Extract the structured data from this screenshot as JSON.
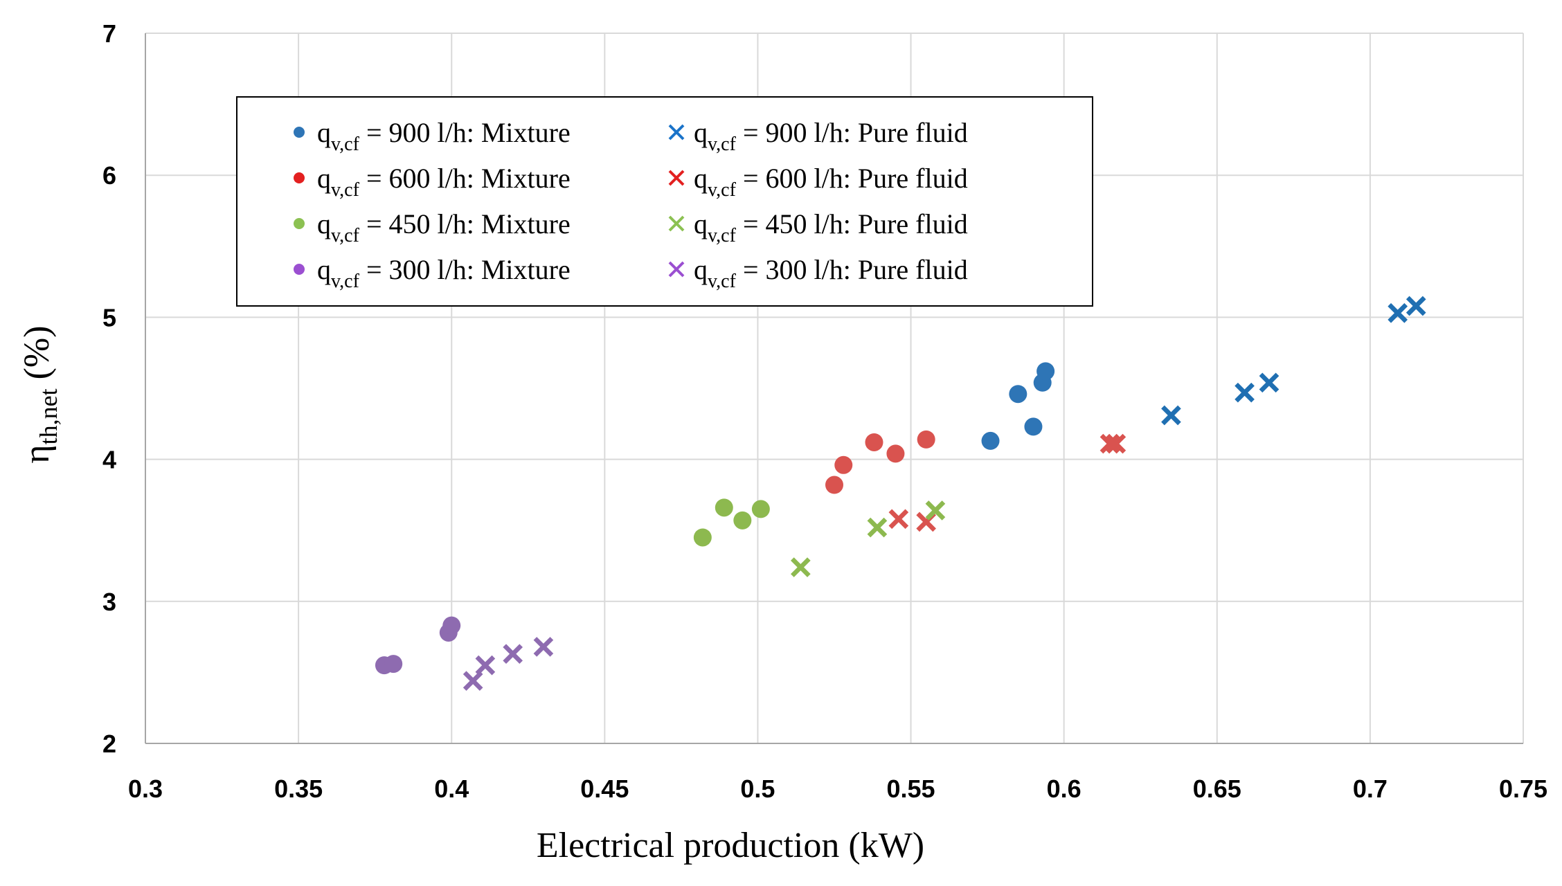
{
  "chart_data": {
    "type": "scatter",
    "title": "",
    "xlabel": "Electrical production (kW)",
    "ylabel": {
      "main": "η",
      "sub": "th,net",
      "unit": " (%)"
    },
    "xlim": [
      0.3,
      0.75
    ],
    "ylim": [
      2,
      7
    ],
    "xticks": [
      0.3,
      0.35,
      0.4,
      0.45,
      0.5,
      0.55,
      0.6,
      0.65,
      0.7,
      0.75
    ],
    "xtick_labels": [
      "0.3",
      "0.35",
      "0.4",
      "0.45",
      "0.5",
      "0.55",
      "0.6",
      "0.65",
      "0.7",
      "0.75"
    ],
    "yticks": [
      2,
      3,
      4,
      5,
      6,
      7
    ],
    "ytick_labels": [
      "2",
      "3",
      "4",
      "5",
      "6",
      "7"
    ],
    "grid": true,
    "legend_position": "top-left",
    "series": [
      {
        "id": "900-mixture",
        "q": "q",
        "q_sub": "v,cf",
        "rest": " = 900 l/h: Mixture",
        "marker": "circle",
        "color": "#2e75b6",
        "legend_color": "#2e75b6",
        "points": [
          [
            0.576,
            4.13
          ],
          [
            0.585,
            4.46
          ],
          [
            0.59,
            4.23
          ],
          [
            0.593,
            4.54
          ],
          [
            0.594,
            4.62
          ]
        ]
      },
      {
        "id": "600-mixture",
        "q": "q",
        "q_sub": "v,cf",
        "rest": " = 600 l/h: Mixture",
        "marker": "circle",
        "color": "#d9534f",
        "legend_color": "#e32020",
        "points": [
          [
            0.525,
            3.82
          ],
          [
            0.528,
            3.96
          ],
          [
            0.538,
            4.12
          ],
          [
            0.545,
            4.04
          ],
          [
            0.555,
            4.14
          ]
        ]
      },
      {
        "id": "450-mixture",
        "q": "q",
        "q_sub": "v,cf",
        "rest": " = 450 l/h: Mixture",
        "marker": "circle",
        "color": "#8db94f",
        "legend_color": "#8cc152",
        "points": [
          [
            0.482,
            3.45
          ],
          [
            0.489,
            3.66
          ],
          [
            0.495,
            3.57
          ],
          [
            0.501,
            3.65
          ]
        ]
      },
      {
        "id": "300-mixture",
        "q": "q",
        "q_sub": "v,cf",
        "rest": " = 300 l/h: Mixture",
        "marker": "circle",
        "color": "#8e6bb0",
        "legend_color": "#9b4fd1",
        "points": [
          [
            0.378,
            2.55
          ],
          [
            0.381,
            2.56
          ],
          [
            0.399,
            2.78
          ],
          [
            0.4,
            2.83
          ]
        ]
      },
      {
        "id": "900-pure",
        "q": "q",
        "q_sub": "v,cf",
        "rest": " = 900 l/h: Pure fluid",
        "marker": "x",
        "color": "#1f6fb2",
        "legend_color": "#1a73c9",
        "points": [
          [
            0.635,
            4.31
          ],
          [
            0.659,
            4.47
          ],
          [
            0.667,
            4.54
          ],
          [
            0.709,
            5.03
          ],
          [
            0.715,
            5.08
          ]
        ]
      },
      {
        "id": "600-pure",
        "q": "q",
        "q_sub": "v,cf",
        "rest": " = 600 l/h: Pure fluid",
        "marker": "x",
        "color": "#d9534f",
        "legend_color": "#e32020",
        "points": [
          [
            0.546,
            3.58
          ],
          [
            0.555,
            3.56
          ],
          [
            0.615,
            4.11
          ],
          [
            0.617,
            4.11
          ]
        ]
      },
      {
        "id": "450-pure",
        "q": "q",
        "q_sub": "v,cf",
        "rest": " = 450 l/h: Pure fluid",
        "marker": "x",
        "color": "#8db94f",
        "legend_color": "#8cc152",
        "points": [
          [
            0.514,
            3.24
          ],
          [
            0.539,
            3.52
          ],
          [
            0.558,
            3.64
          ]
        ]
      },
      {
        "id": "300-pure",
        "q": "q",
        "q_sub": "v,cf",
        "rest": " = 300 l/h: Pure fluid",
        "marker": "x",
        "color": "#8e6bb0",
        "legend_color": "#9b4fd1",
        "points": [
          [
            0.407,
            2.44
          ],
          [
            0.411,
            2.55
          ],
          [
            0.42,
            2.63
          ],
          [
            0.43,
            2.68
          ]
        ]
      }
    ]
  },
  "colors": {
    "grid": "#d9d9d9",
    "axis": "#a6a6a6",
    "legend_border": "#000000",
    "text": "#000000"
  }
}
